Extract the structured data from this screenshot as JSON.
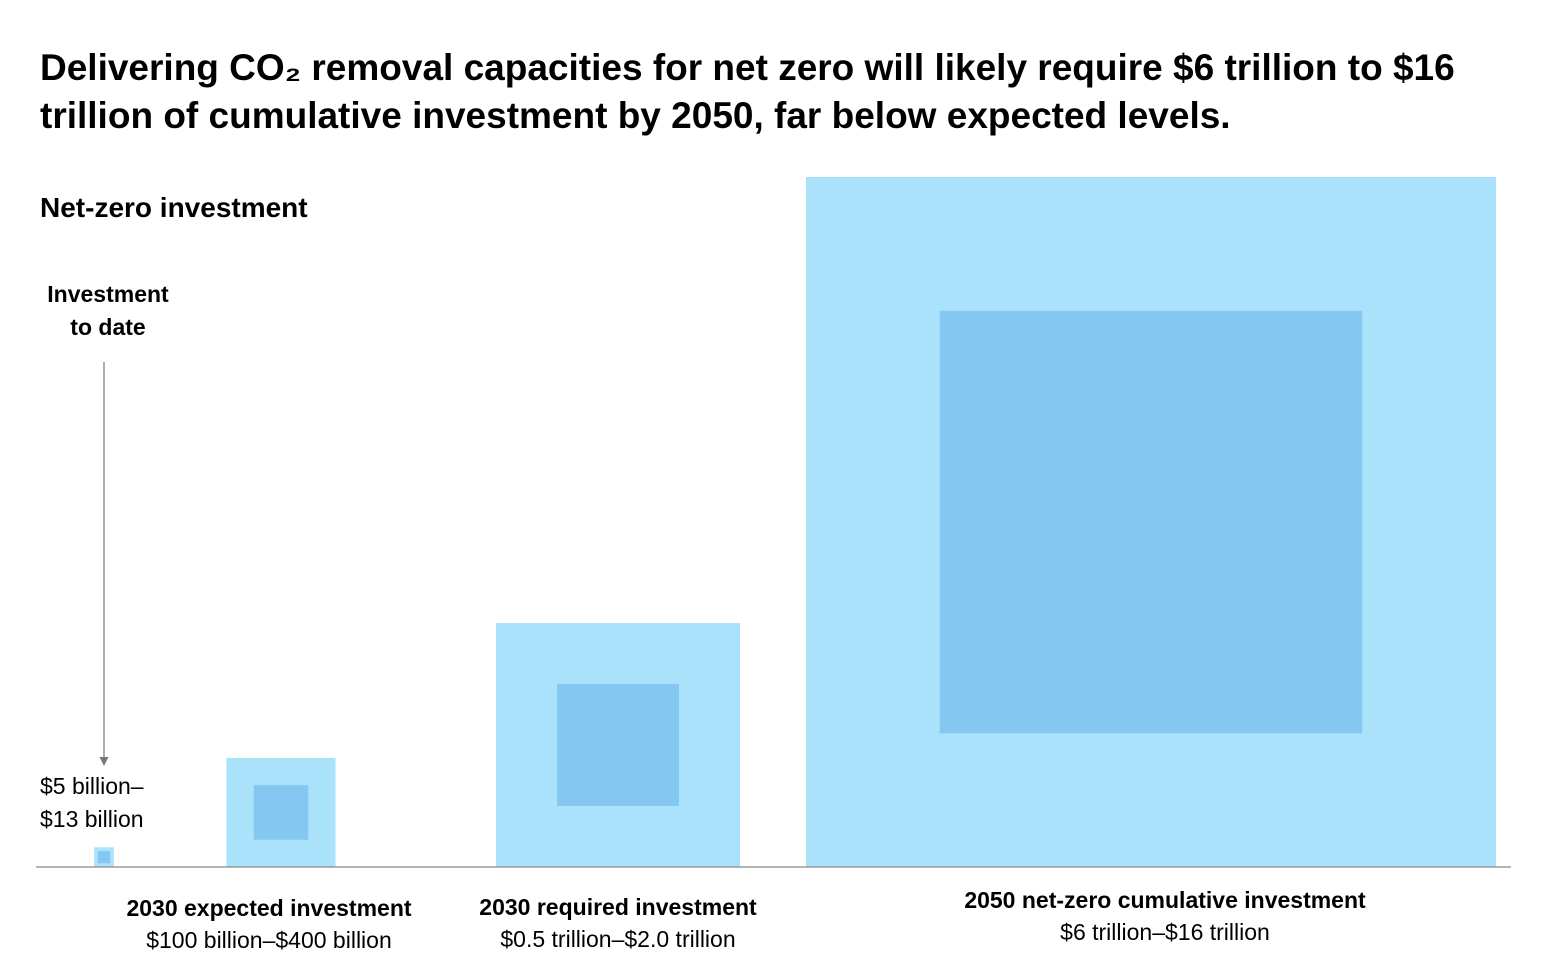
{
  "title": "Delivering CO₂ removal capacities for net zero will likely require $6 trillion to $16 trillion of cumulative investment by 2050, far below expected levels.",
  "chart_data": {
    "type": "nested-square",
    "title": "Delivering CO₂ removal capacities for net zero will likely require $6 trillion to $16 trillion of cumulative investment by 2050, far below expected levels.",
    "subtitle": "Net-zero investment",
    "units": "US dollars",
    "colors": {
      "outer_high": "#abe2fb",
      "inner_low": "#84c7f0",
      "baseline": "#888888",
      "arrow": "#777777"
    },
    "series": [
      {
        "name": "Investment to date",
        "label_line1": "Investment",
        "label_line2": "to date",
        "range_line1": "$5 billion–",
        "range_line2": "$13 billion",
        "low_billion": 5,
        "high_billion": 13
      },
      {
        "name": "2030 expected investment",
        "range": "$100 billion–$400 billion",
        "low_billion": 100,
        "high_billion": 400
      },
      {
        "name": "2030 required investment",
        "range": "$0.5 trillion–$2.0 trillion",
        "low_billion": 500,
        "high_billion": 2000
      },
      {
        "name": "2050 net-zero cumulative investment",
        "range": "$6 trillion–$16 trillion",
        "low_billion": 6000,
        "high_billion": 16000
      }
    ]
  }
}
